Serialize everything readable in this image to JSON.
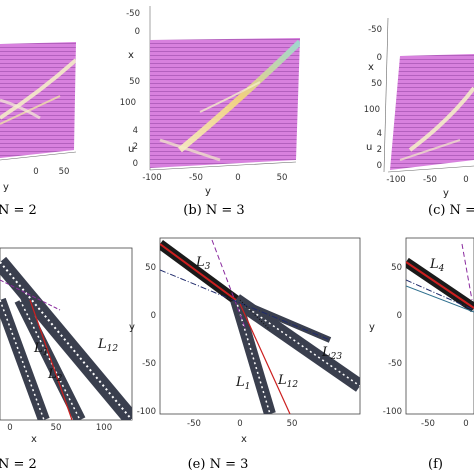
{
  "captions": {
    "a": "N = 2",
    "b": "(b) N = 3",
    "c": "(c) N =",
    "d": "N = 2",
    "e": "(e) N = 3",
    "f": "(f)"
  },
  "top_panels": {
    "a": {
      "y_label": "y",
      "y_ticks": [
        "0",
        "50"
      ]
    },
    "b": {
      "x_label": "x",
      "u_label": "u",
      "y_label": "y",
      "x_ticks": [
        "-50",
        "0",
        "50",
        "100"
      ],
      "u_ticks": [
        "4",
        "2",
        "0"
      ],
      "y_ticks": [
        "-100",
        "-50",
        "0",
        "50"
      ]
    },
    "c": {
      "x_label": "x",
      "u_label": "u",
      "y_label": "y",
      "x_ticks": [
        "-50",
        "0",
        "50",
        "100"
      ],
      "u_ticks": [
        "4",
        "2",
        "0"
      ],
      "y_ticks": [
        "-100",
        "-50",
        "0"
      ]
    }
  },
  "colors": {
    "surface": "#d97ddf",
    "surface_dark": "#b25abf",
    "soliton": "#e8d58f",
    "band": "#3a3f4e",
    "red_line": "#cc1f1f",
    "purple_dashed": "#8a2a9e",
    "navy_dashdot": "#1f2a6b",
    "teal_line": "#2e6f8e"
  },
  "chart_data": [
    {
      "panel": "d",
      "type": "line",
      "xlabel": "x",
      "x_ticks": [
        "0",
        "50",
        "100"
      ],
      "curve_labels": [
        "L1",
        "L2",
        "L12"
      ]
    },
    {
      "panel": "e",
      "type": "line",
      "xlabel": "x",
      "ylabel": "y",
      "xlim": [
        -90,
        90
      ],
      "ylim": [
        -105,
        85
      ],
      "x_ticks": [
        "-50",
        "0",
        "50"
      ],
      "y_ticks": [
        "50",
        "0",
        "-50",
        "-100"
      ],
      "curve_labels": [
        "L3",
        "L1",
        "L12",
        "L23"
      ]
    },
    {
      "panel": "f",
      "type": "line",
      "ylabel": "y",
      "x_ticks": [
        "-50",
        "0"
      ],
      "y_ticks": [
        "50",
        "0",
        "-50",
        "-100"
      ],
      "curve_labels": [
        "L4"
      ]
    }
  ]
}
